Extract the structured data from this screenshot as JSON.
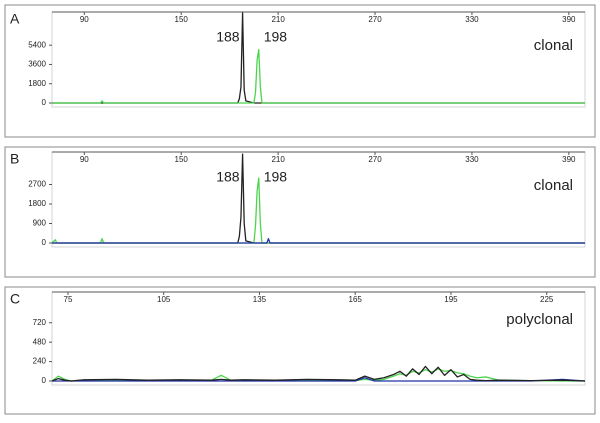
{
  "chart_data": [
    {
      "type": "line",
      "panel_label": "A",
      "annotations": [
        "188",
        "198",
        "clonal"
      ],
      "x": [
        70,
        100,
        101,
        102,
        150,
        185,
        186,
        187,
        188,
        189,
        190,
        195,
        196,
        197,
        198,
        199,
        200,
        400
      ],
      "series": [
        {
          "color": "#222222",
          "values": [
            0,
            0,
            0,
            0,
            0,
            0,
            400,
            1500,
            8400,
            1200,
            200,
            0,
            0,
            0,
            0,
            0,
            0,
            0
          ]
        },
        {
          "color": "#4cd44c",
          "values": [
            0,
            0,
            200,
            0,
            0,
            0,
            0,
            0,
            0,
            0,
            0,
            0,
            1000,
            4000,
            5000,
            1500,
            0,
            0
          ]
        }
      ],
      "xlim": [
        70,
        400
      ],
      "xticks": [
        90,
        150,
        210,
        270,
        330,
        390
      ],
      "ylim": [
        0,
        8500
      ],
      "yticks": [
        0,
        1800,
        3600,
        5400
      ]
    },
    {
      "type": "line",
      "panel_label": "B",
      "annotations": [
        "188",
        "198",
        "clonal"
      ],
      "x": [
        70,
        72,
        73,
        100,
        101,
        102,
        175,
        185,
        186,
        187,
        188,
        189,
        190,
        195,
        196,
        197,
        198,
        199,
        200,
        203,
        204,
        205,
        400
      ],
      "series": [
        {
          "color": "#222222",
          "values": [
            0,
            0,
            0,
            0,
            0,
            0,
            0,
            0,
            300,
            1200,
            4100,
            900,
            100,
            0,
            0,
            0,
            0,
            0,
            0,
            0,
            0,
            0,
            0
          ]
        },
        {
          "color": "#4cd44c",
          "values": [
            0,
            150,
            0,
            0,
            200,
            0,
            0,
            0,
            0,
            0,
            0,
            0,
            0,
            0,
            800,
            2400,
            3000,
            900,
            0,
            0,
            0,
            0,
            0
          ]
        },
        {
          "color": "#2233aa",
          "values": [
            0,
            0,
            0,
            0,
            0,
            0,
            0,
            0,
            0,
            0,
            0,
            0,
            0,
            0,
            0,
            0,
            0,
            0,
            0,
            0,
            200,
            0,
            0
          ]
        }
      ],
      "xlim": [
        70,
        400
      ],
      "xticks": [
        90,
        150,
        210,
        270,
        330,
        390
      ],
      "ylim": [
        0,
        4200
      ],
      "yticks": [
        0,
        900,
        1800,
        2700
      ]
    },
    {
      "type": "line",
      "panel_label": "C",
      "annotations": [
        "polyclonal"
      ],
      "x": [
        70,
        72,
        74,
        76,
        80,
        90,
        100,
        110,
        120,
        123,
        126,
        130,
        140,
        150,
        160,
        165,
        168,
        171,
        174,
        177,
        179,
        181,
        183,
        185,
        187,
        189,
        191,
        193,
        195,
        197,
        199,
        201,
        203,
        206,
        210,
        220,
        230,
        237
      ],
      "series": [
        {
          "color": "#4cd44c",
          "values": [
            0,
            60,
            20,
            0,
            5,
            10,
            5,
            5,
            10,
            70,
            10,
            5,
            5,
            10,
            5,
            5,
            20,
            10,
            20,
            60,
            90,
            70,
            120,
            100,
            140,
            110,
            150,
            120,
            130,
            100,
            90,
            60,
            40,
            50,
            10,
            5,
            0,
            0
          ]
        },
        {
          "color": "#2233aa",
          "values": [
            0,
            0,
            0,
            0,
            0,
            0,
            0,
            0,
            0,
            0,
            0,
            0,
            0,
            0,
            0,
            0,
            40,
            0,
            0,
            0,
            0,
            0,
            0,
            0,
            0,
            0,
            0,
            0,
            0,
            0,
            0,
            0,
            0,
            0,
            0,
            0,
            20,
            0
          ]
        },
        {
          "color": "#222222",
          "values": [
            0,
            30,
            10,
            0,
            15,
            20,
            10,
            15,
            10,
            20,
            10,
            15,
            10,
            20,
            15,
            10,
            60,
            20,
            40,
            80,
            120,
            60,
            150,
            80,
            180,
            90,
            170,
            70,
            140,
            50,
            80,
            20,
            10,
            5,
            10,
            5,
            10,
            0
          ]
        }
      ],
      "xlim": [
        70,
        237
      ],
      "xticks": [
        75,
        105,
        135,
        165,
        195,
        225
      ],
      "ylim": [
        0,
        1100
      ],
      "yticks": [
        0,
        240,
        480,
        720
      ]
    }
  ]
}
